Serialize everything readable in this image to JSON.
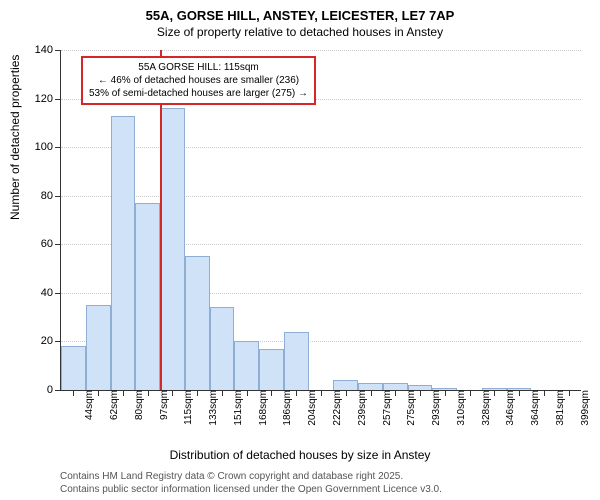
{
  "title": "55A, GORSE HILL, ANSTEY, LEICESTER, LE7 7AP",
  "subtitle": "Size of property relative to detached houses in Anstey",
  "y_axis_label": "Number of detached properties",
  "x_axis_label": "Distribution of detached houses by size in Anstey",
  "credits_line1": "Contains HM Land Registry data © Crown copyright and database right 2025.",
  "credits_line2": "Contains public sector information licensed under the Open Government Licence v3.0.",
  "chart": {
    "type": "histogram",
    "ylim": [
      0,
      140
    ],
    "ytick_step": 20,
    "y_ticks": [
      0,
      20,
      40,
      60,
      80,
      100,
      120,
      140
    ],
    "x_labels": [
      "44sqm",
      "62sqm",
      "80sqm",
      "97sqm",
      "115sqm",
      "133sqm",
      "151sqm",
      "168sqm",
      "186sqm",
      "204sqm",
      "222sqm",
      "239sqm",
      "257sqm",
      "275sqm",
      "293sqm",
      "310sqm",
      "328sqm",
      "346sqm",
      "364sqm",
      "381sqm",
      "399sqm"
    ],
    "values": [
      18,
      35,
      113,
      77,
      116,
      55,
      34,
      20,
      17,
      24,
      0,
      4,
      3,
      3,
      2,
      1,
      0,
      1,
      1,
      0,
      0
    ],
    "bar_fill": "#cfe2f7",
    "bar_stroke": "#8faed4",
    "background": "#ffffff",
    "grid_color": "#cccccc",
    "highlight_index": 4,
    "highlight_color": "#d62728",
    "label_fontsize": 12,
    "tick_fontsize": 10
  },
  "annotation": {
    "line1": "55A GORSE HILL: 115sqm",
    "line2": "← 46% of detached houses are smaller (236)",
    "line3": "53% of semi-detached houses are larger (275) →",
    "border_color": "#d62728"
  }
}
